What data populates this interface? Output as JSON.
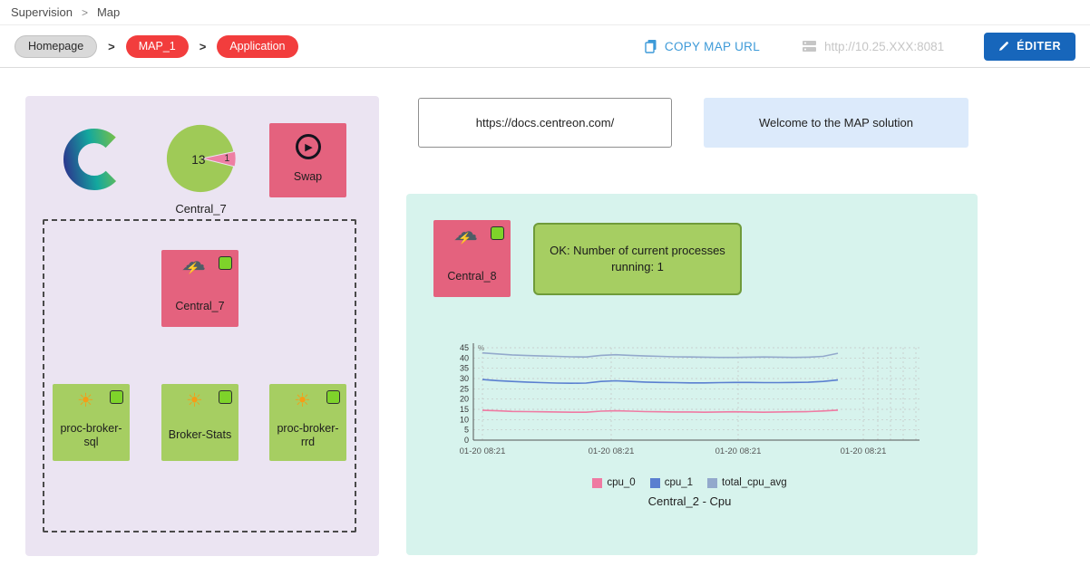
{
  "topnav": {
    "section": "Supervision",
    "separator": ">",
    "page": "Map"
  },
  "toolbar": {
    "breadcrumb": [
      {
        "label": "Homepage"
      },
      {
        "label": "MAP_1"
      },
      {
        "label": "Application"
      }
    ],
    "separator": ">",
    "copy_map_url_label": "COPY MAP URL",
    "server_url": "http://10.25.XXX:8081",
    "edit_button_label": "ÉDITER"
  },
  "left_panel": {
    "pie": {
      "value_main": "13",
      "value_slice": "1",
      "label": "Central_7"
    },
    "swap_node": {
      "label": "Swap"
    },
    "central7_node": {
      "label": "Central_7"
    },
    "green_nodes": [
      {
        "label": "proc-broker-sql"
      },
      {
        "label": "Broker-Stats"
      },
      {
        "label": "proc-broker-rrd"
      }
    ]
  },
  "info_boxes": {
    "docs_url": "https://docs.centreon.com/",
    "welcome_text": "Welcome to the MAP solution"
  },
  "right_panel": {
    "central8_node": {
      "label": "Central_8"
    },
    "status_text": "OK: Number of current processes running: 1"
  },
  "icons": {
    "storm_cloud": "☁",
    "lightning": "⚡",
    "sun": "☀",
    "play": "▶"
  },
  "colors": {
    "node_pink": "#e4627e",
    "node_green": "#a6ce62",
    "status_green": "#7ed32a",
    "panel_left": "#ebe4f2",
    "panel_right": "#d7f3ed",
    "accent_blue": "#1766bb",
    "pill_red": "#f23d3d"
  },
  "chart_data": {
    "type": "line",
    "title": "Central_2 - Cpu",
    "ylabel": "%",
    "ylim": [
      0,
      45
    ],
    "yticks": [
      0,
      5,
      10,
      15,
      20,
      25,
      30,
      35,
      40,
      45
    ],
    "xticklabels": [
      "01-20 08:21",
      "01-20 08:21",
      "01-20 08:21",
      "01-20 08:21"
    ],
    "grid": true,
    "legend_position": "bottom",
    "series": [
      {
        "name": "cpu_0",
        "color": "#ef7aa2",
        "values": [
          14.5,
          14.3,
          14.0,
          13.9,
          13.8,
          13.7,
          13.6,
          13.6,
          14.1,
          14.3,
          14.1,
          13.9,
          13.8,
          13.7,
          13.7,
          13.6,
          13.7,
          13.8,
          13.7,
          13.6,
          13.7,
          13.8,
          13.9,
          14.2,
          14.6
        ]
      },
      {
        "name": "cpu_1",
        "color": "#5a7fd0",
        "values": [
          29.5,
          29.0,
          28.6,
          28.3,
          28.0,
          27.8,
          27.7,
          27.8,
          28.6,
          28.9,
          28.6,
          28.3,
          28.1,
          28.0,
          27.9,
          27.9,
          28.0,
          28.1,
          28.1,
          28.0,
          28.0,
          28.1,
          28.2,
          28.6,
          29.3
        ]
      },
      {
        "name": "total_cpu_avg",
        "color": "#93a9cc",
        "values": [
          42.5,
          42.0,
          41.5,
          41.2,
          41.0,
          40.8,
          40.6,
          40.5,
          41.3,
          41.6,
          41.3,
          41.0,
          40.8,
          40.6,
          40.5,
          40.4,
          40.3,
          40.3,
          40.4,
          40.5,
          40.4,
          40.3,
          40.4,
          40.8,
          42.3
        ]
      }
    ]
  }
}
